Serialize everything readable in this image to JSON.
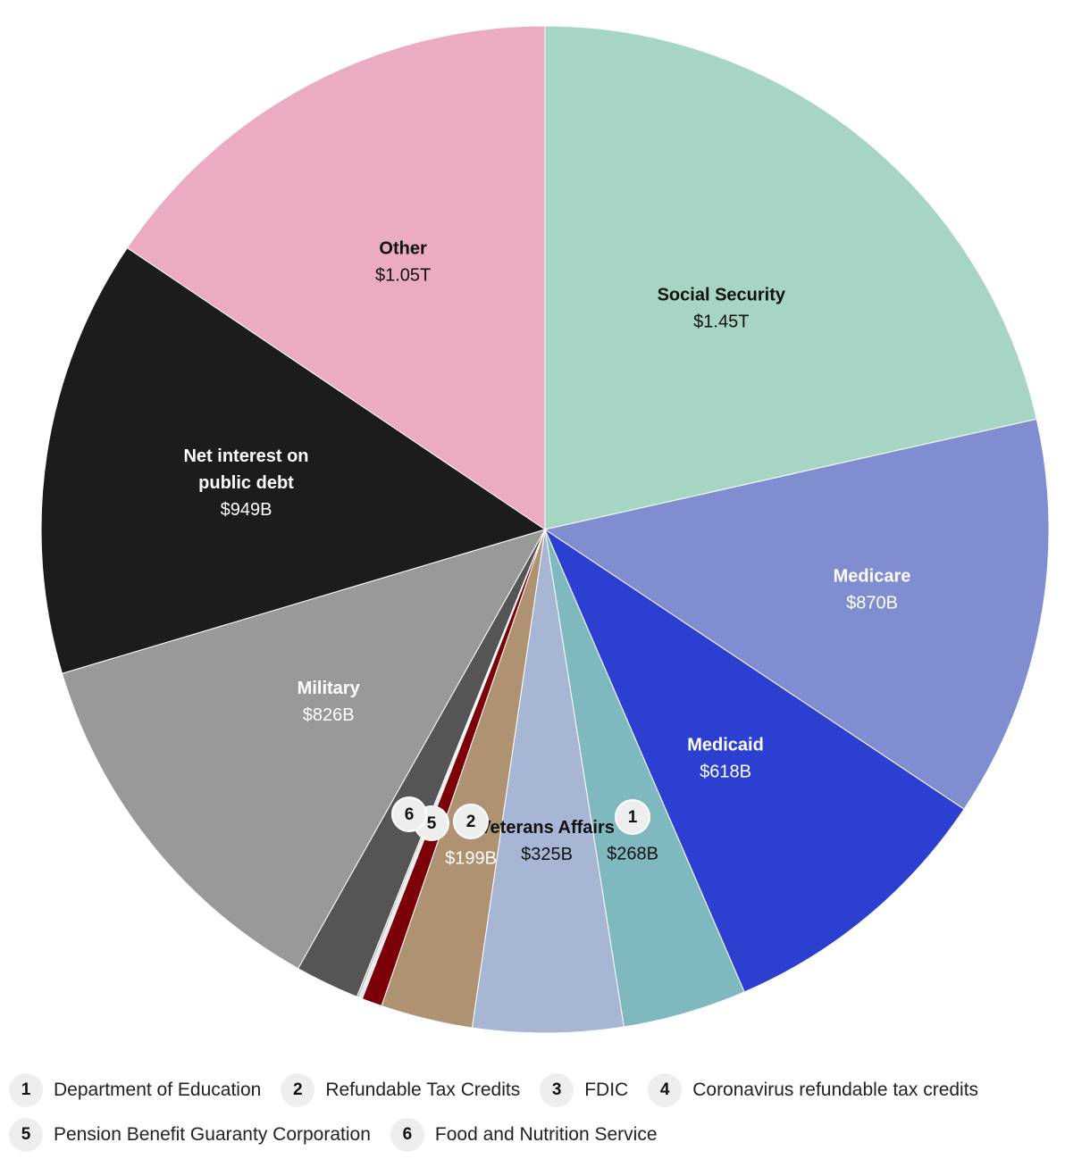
{
  "chart_data": {
    "type": "pie",
    "title": "",
    "slices": [
      {
        "name": "Social Security",
        "value": 1450,
        "value_label": "$1.45T",
        "color": "#a6d6c3",
        "label_color": "#111111",
        "label": "Social Security"
      },
      {
        "name": "Medicare",
        "value": 870,
        "value_label": "$870B",
        "color": "#808dd1",
        "label_color": "#ffffff",
        "label": "Medicare"
      },
      {
        "name": "Medicaid",
        "value": 618,
        "value_label": "$618B",
        "color": "#2b3fd1",
        "label_color": "#ffffff",
        "label": "Medicaid"
      },
      {
        "name": "Department of Education",
        "value": 268,
        "value_label": "$268B",
        "color": "#80b8c0",
        "label_color": "#111111",
        "marker": "1"
      },
      {
        "name": "Veterans Affairs",
        "value": 325,
        "value_label": "$325B",
        "color": "#a7b6d4",
        "label_color": "#111111",
        "label": "Veterans Affairs"
      },
      {
        "name": "Refundable Tax Credits",
        "value": 199,
        "value_label": "$199B",
        "color": "#ae9271",
        "label_color": "#ffffff",
        "marker": "2"
      },
      {
        "name": "Pension Benefit Guaranty Corporation",
        "value": 44,
        "color": "#7b0007",
        "marker": "5"
      },
      {
        "name": "Coronavirus refundable tax credits",
        "value": 7,
        "color": "#e7e7e7"
      },
      {
        "name": "FDIC",
        "value": 5,
        "color": "#bdbdbd"
      },
      {
        "name": "Food and Nutrition Service",
        "value": 139,
        "color": "#555555",
        "marker": "6"
      },
      {
        "name": "Military",
        "value": 826,
        "value_label": "$826B",
        "color": "#999999",
        "label_color": "#ffffff",
        "label": "Military"
      },
      {
        "name": "Net interest on public debt",
        "value": 949,
        "value_label": "$949B",
        "color": "#1c1c1c",
        "label_color": "#ffffff",
        "label": "Net interest on public debt"
      },
      {
        "name": "Other",
        "value": 1050,
        "value_label": "$1.05T",
        "color": "#eaabc3",
        "label_color": "#111111",
        "label": "Other"
      }
    ]
  },
  "legend": [
    {
      "number": "1",
      "label": "Department of Education"
    },
    {
      "number": "2",
      "label": "Refundable Tax Credits"
    },
    {
      "number": "3",
      "label": "FDIC"
    },
    {
      "number": "4",
      "label": "Coronavirus refundable tax credits"
    },
    {
      "number": "5",
      "label": "Pension Benefit Guaranty Corporation"
    },
    {
      "number": "6",
      "label": "Food and Nutrition Service"
    }
  ]
}
